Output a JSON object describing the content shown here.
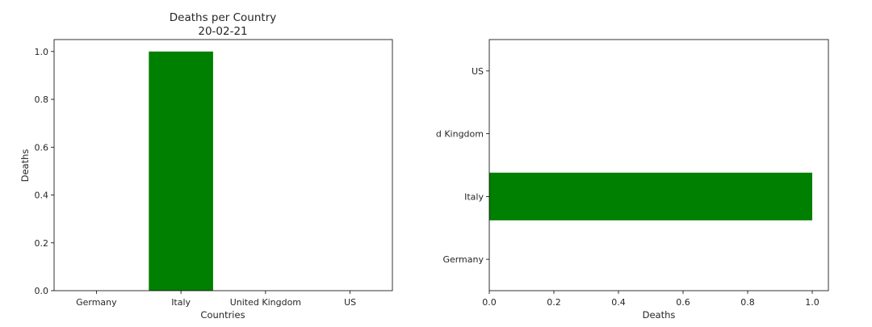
{
  "chart_data": [
    {
      "type": "bar",
      "orientation": "vertical",
      "title": "Deaths per Country",
      "subtitle": "20-02-21",
      "xlabel": "Countries",
      "ylabel": "Deaths",
      "categories": [
        "Germany",
        "Italy",
        "United Kingdom",
        "US"
      ],
      "values": [
        0,
        1,
        0,
        0
      ],
      "ylim": [
        0,
        1.05
      ],
      "yticks": [
        0.0,
        0.2,
        0.4,
        0.6,
        0.8,
        1.0
      ],
      "ytick_labels": [
        "0.0",
        "0.2",
        "0.4",
        "0.6",
        "0.8",
        "1.0"
      ],
      "bar_color": "#008000",
      "grid": false,
      "legend": "none"
    },
    {
      "type": "bar",
      "orientation": "horizontal",
      "title": "",
      "xlabel": "Deaths",
      "ylabel": "",
      "categories": [
        "Germany",
        "Italy",
        "United Kingdom",
        "US"
      ],
      "category_labels_visible": [
        "Germany",
        "Italy",
        "d Kingdom",
        "US"
      ],
      "values": [
        0,
        1,
        0,
        0
      ],
      "xlim": [
        0,
        1.05
      ],
      "xticks": [
        0.0,
        0.2,
        0.4,
        0.6,
        0.8,
        1.0
      ],
      "xtick_labels": [
        "0.0",
        "0.2",
        "0.4",
        "0.6",
        "0.8",
        "1.0"
      ],
      "bar_color": "#008000",
      "grid": false,
      "legend": "none"
    }
  ]
}
